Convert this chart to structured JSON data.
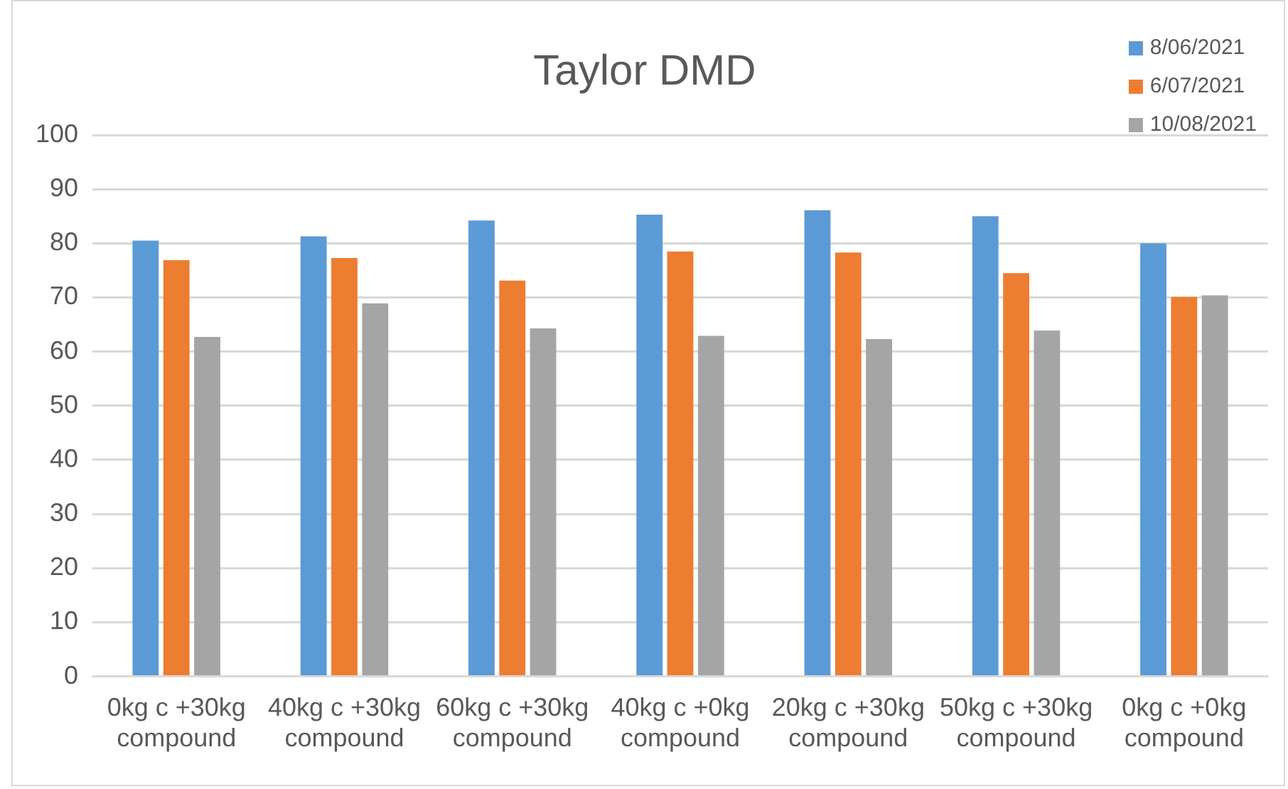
{
  "chart_data": {
    "type": "bar",
    "title": "Taylor DMD",
    "categories": [
      "0kg c +30kg compound",
      "40kg c +30kg compound",
      "60kg c +30kg compound",
      "40kg c +0kg compound",
      "20kg c +30kg compound",
      "50kg c +30kg compound",
      "0kg c +0kg compound"
    ],
    "series": [
      {
        "name": "8/06/2021",
        "color": "#5b9bd5",
        "values": [
          80.5,
          81.3,
          84.2,
          85.3,
          86.1,
          85.0,
          80.0
        ]
      },
      {
        "name": "6/07/2021",
        "color": "#ed7d31",
        "values": [
          76.9,
          77.3,
          73.1,
          78.5,
          78.3,
          74.5,
          70.1
        ]
      },
      {
        "name": "10/08/2021",
        "color": "#a5a5a5",
        "values": [
          62.7,
          68.9,
          64.3,
          62.9,
          62.3,
          63.9,
          70.4
        ]
      }
    ],
    "ylim": [
      0,
      100
    ],
    "yticks": [
      0,
      10,
      20,
      30,
      40,
      50,
      60,
      70,
      80,
      90,
      100
    ],
    "grid": "y",
    "legend": "top right"
  }
}
